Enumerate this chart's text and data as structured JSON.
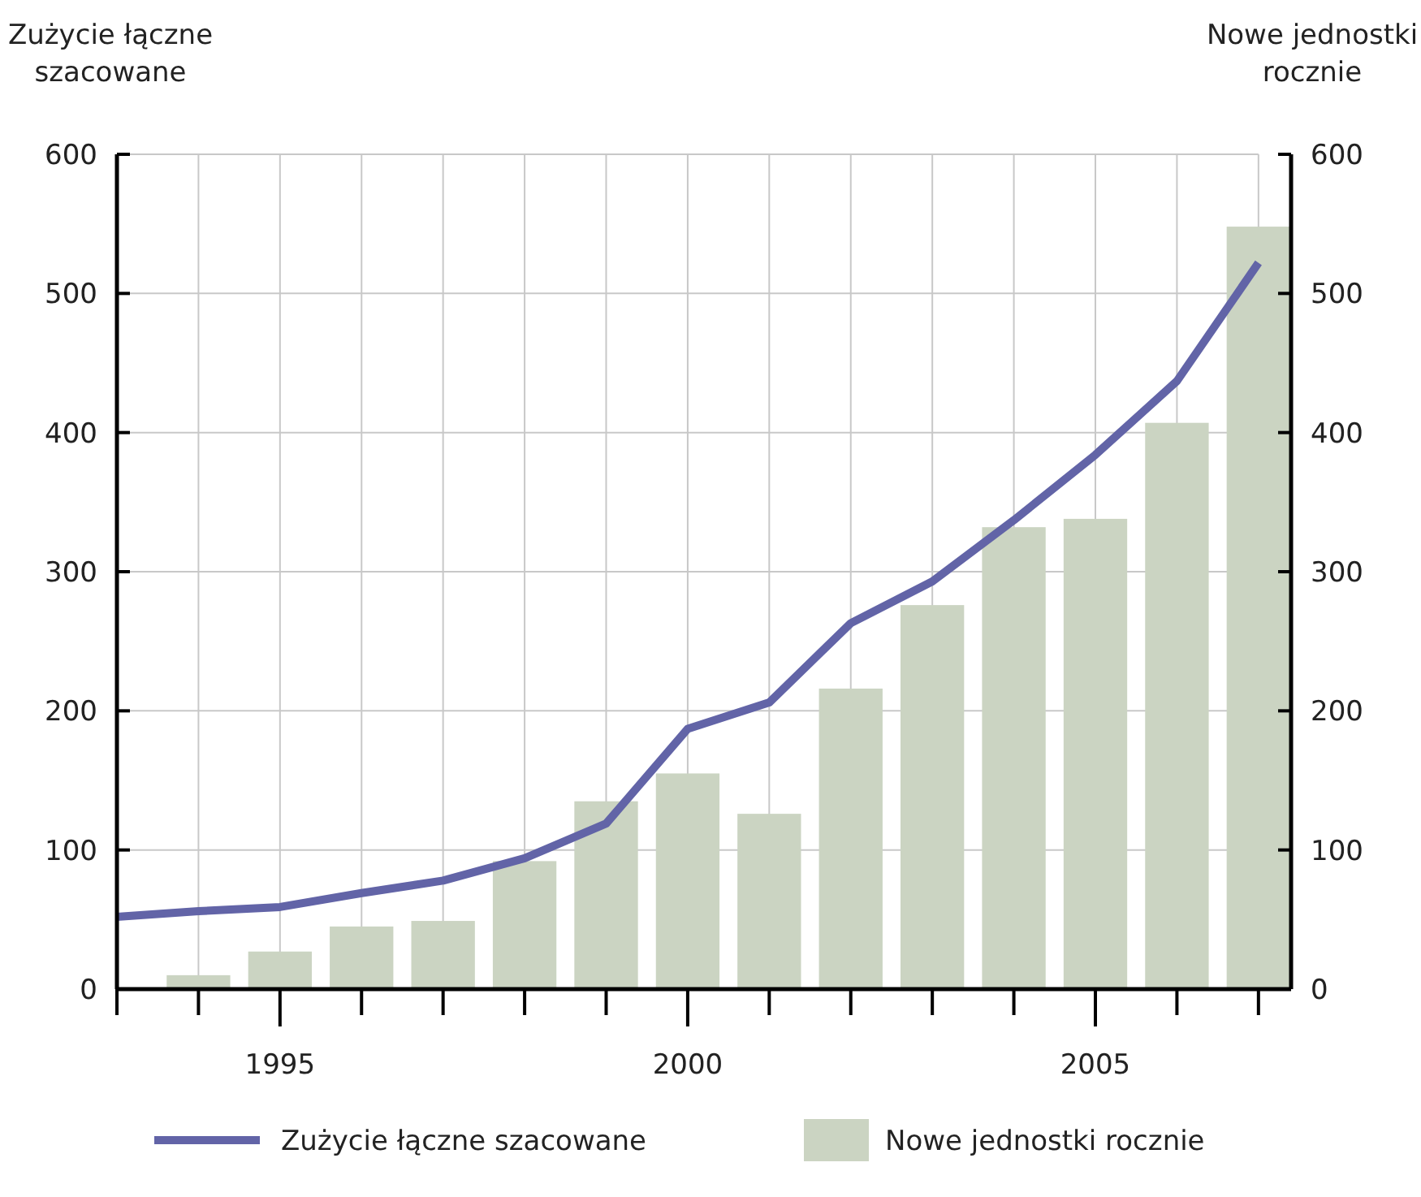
{
  "chart_data": {
    "type": "bar",
    "ylabel": "Zużycie łączne szacowane",
    "y2label": "Nowe jednostki rocznie",
    "xlim": [
      1993,
      2007.4
    ],
    "xticks": [
      {
        "value": 1993,
        "label": null
      },
      {
        "value": 1994,
        "label": null
      },
      {
        "value": 1995,
        "label": "1995"
      },
      {
        "value": 1996,
        "label": null
      },
      {
        "value": 1997,
        "label": null
      },
      {
        "value": 1998,
        "label": null
      },
      {
        "value": 1999,
        "label": null
      },
      {
        "value": 2000,
        "label": "2000"
      },
      {
        "value": 2001,
        "label": null
      },
      {
        "value": 2002,
        "label": null
      },
      {
        "value": 2003,
        "label": null
      },
      {
        "value": 2004,
        "label": null
      },
      {
        "value": 2005,
        "label": "2005"
      },
      {
        "value": 2006,
        "label": null
      },
      {
        "value": 2007,
        "label": null
      }
    ],
    "ylim": [
      0,
      600
    ],
    "yticks": [
      0,
      100,
      200,
      300,
      400,
      500,
      600
    ],
    "y2lim": [
      0,
      600
    ],
    "y2ticks": [
      0,
      100,
      200,
      300,
      400,
      500,
      600
    ],
    "grid": true,
    "legend": "bottom",
    "series": [
      {
        "name": "Zużycie łączne szacowane",
        "type": "line",
        "color": "#6264a7",
        "x": [
          1993,
          1994,
          1995,
          1996,
          1997,
          1998,
          1999,
          2000,
          2001,
          2002,
          2003,
          2004,
          2005,
          2006,
          2007
        ],
        "values": [
          52,
          56,
          59,
          69,
          78,
          94,
          119,
          187,
          206,
          263,
          293,
          337,
          384,
          437,
          522
        ]
      },
      {
        "name": "Nowe jednostki rocznie",
        "axis": "y2",
        "color": "#cbd4c2",
        "x": [
          1994,
          1995,
          1996,
          1997,
          1998,
          1999,
          2000,
          2001,
          2002,
          2003,
          2004,
          2005,
          2006,
          2007
        ],
        "values": [
          10,
          27,
          45,
          49,
          92,
          135,
          155,
          126,
          216,
          276,
          332,
          338,
          407,
          548
        ]
      }
    ]
  }
}
